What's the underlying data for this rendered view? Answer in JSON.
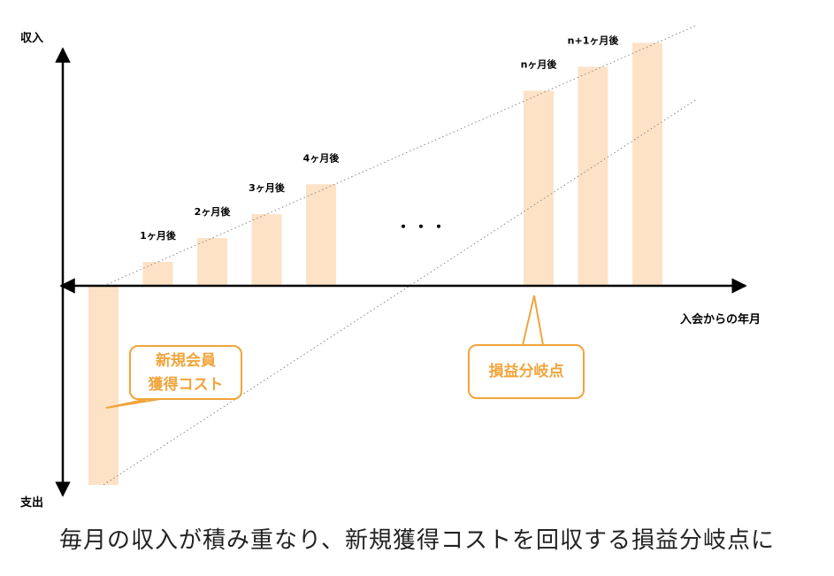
{
  "caption": "毎月の収入が積み重なり、新規獲得コストを回収する損益分岐点に",
  "chart_data": {
    "type": "bar",
    "y_axis_top_label": "収入",
    "y_axis_bottom_label": "支出",
    "x_axis_label": "入会からの年月",
    "ellipsis": "・・・",
    "bars": [
      {
        "label": "",
        "value": -10
      },
      {
        "label": "1ヶ月後",
        "value": 1.2
      },
      {
        "label": "2ヶ月後",
        "value": 2.4
      },
      {
        "label": "3ヶ月後",
        "value": 3.6
      },
      {
        "label": "4ヶ月後",
        "value": 5.1
      },
      {
        "label": "",
        "value": null
      },
      {
        "label": "",
        "value": null
      },
      {
        "label": "",
        "value": null
      },
      {
        "label": "nヶ月後",
        "value": 9.8
      },
      {
        "label": "n+1ヶ月後",
        "value": 11.0
      },
      {
        "label": "",
        "value": 12.2
      }
    ],
    "colors": {
      "bar": "#fde2c6",
      "accent": "#f0a53c",
      "axis": "#000000",
      "trend": "#888888"
    }
  },
  "callouts": {
    "acquisition": {
      "line1": "新規会員",
      "line2": "獲得コスト"
    },
    "breakeven": {
      "line1": "損益分岐点"
    }
  }
}
